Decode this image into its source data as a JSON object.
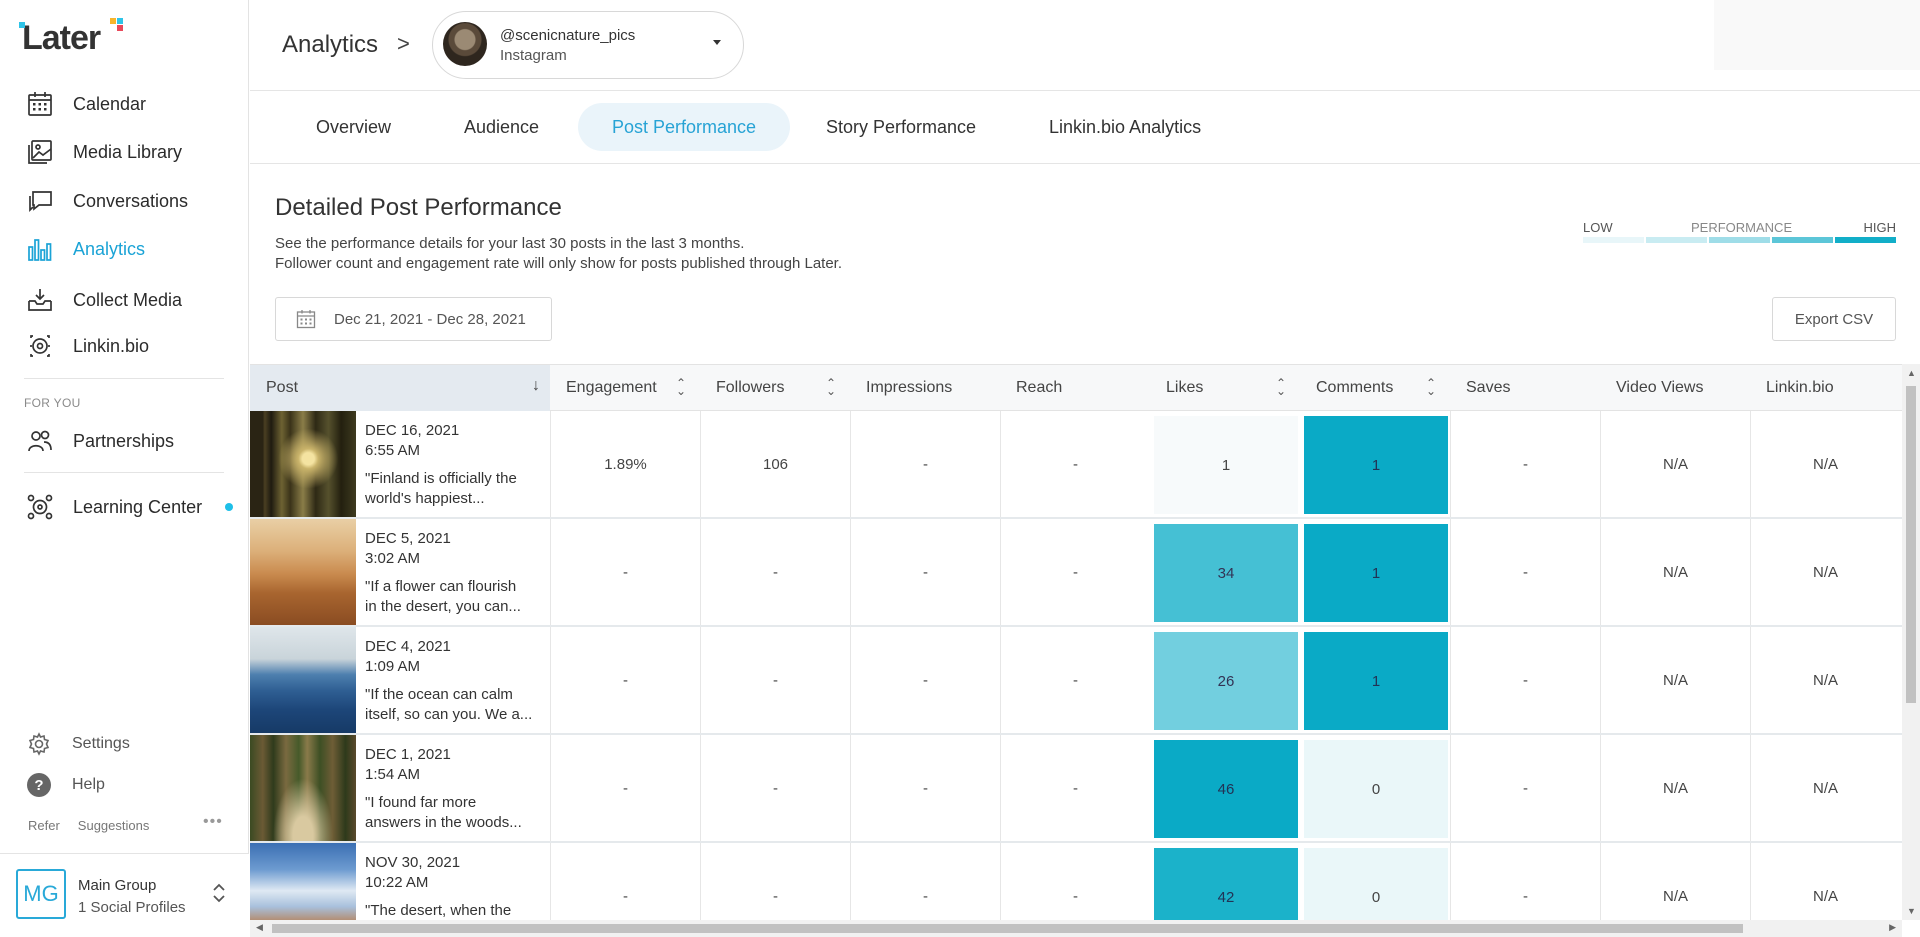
{
  "app": {
    "logo_text": "Later"
  },
  "sidebar": {
    "items": [
      {
        "label": "Calendar",
        "icon": "calendar-icon"
      },
      {
        "label": "Media Library",
        "icon": "image-icon"
      },
      {
        "label": "Conversations",
        "icon": "chat-icon"
      },
      {
        "label": "Analytics",
        "icon": "bar-chart-icon",
        "active": true
      },
      {
        "label": "Collect Media",
        "icon": "download-tray-icon"
      },
      {
        "label": "Linkin.bio",
        "icon": "linkinbio-icon"
      }
    ],
    "section_label": "FOR YOU",
    "partnerships": {
      "label": "Partnerships",
      "icon": "people-icon"
    },
    "learning": {
      "label": "Learning Center",
      "icon": "learning-icon",
      "notification_color": "#1ebfe8"
    },
    "settings": {
      "label": "Settings",
      "icon": "gear-icon"
    },
    "help": {
      "label": "Help",
      "icon": "help-icon",
      "glyph": "?"
    },
    "footer_links": {
      "refer": "Refer",
      "suggestions": "Suggestions",
      "more": "•••"
    },
    "group": {
      "initials": "MG",
      "name": "Main Group",
      "profiles": "1 Social Profiles"
    }
  },
  "header": {
    "breadcrumb": "Analytics",
    "breadcrumb_arrow": ">",
    "profile": {
      "handle": "@scenicnature_pics",
      "network": "Instagram"
    }
  },
  "tabs": [
    {
      "label": "Overview"
    },
    {
      "label": "Audience"
    },
    {
      "label": "Post Performance",
      "active": true
    },
    {
      "label": "Story Performance"
    },
    {
      "label": "Linkin.bio Analytics"
    }
  ],
  "main": {
    "title": "Detailed Post Performance",
    "description_1": "See the performance details for your last 30 posts in the last 3 months.",
    "description_2": "Follower count and engagement rate will only show for posts published through Later.",
    "legend": {
      "low": "LOW",
      "mid": "PERFORMANCE",
      "high": "HIGH",
      "colors": [
        "#e8f6f9",
        "#c9ecf2",
        "#9fdde8",
        "#5cc6d8",
        "#12aec8"
      ]
    },
    "date_range": "Dec 21, 2021 - Dec 28, 2021",
    "export_label": "Export CSV"
  },
  "table": {
    "headers": {
      "post": "Post",
      "engagement": "Engagement",
      "followers": "Followers",
      "impressions": "Impressions",
      "reach": "Reach",
      "likes": "Likes",
      "comments": "Comments",
      "saves": "Saves",
      "video_views": "Video Views",
      "linkinbio": "Linkin.bio"
    },
    "rows": [
      {
        "date": "DEC 16, 2021",
        "time": "6:55 AM",
        "caption1": "\"Finland is officially the",
        "caption2": "world's happiest...",
        "engagement": "1.89%",
        "followers": "106",
        "impressions": "-",
        "reach": "-",
        "likes": "1",
        "comments": "1",
        "saves": "-",
        "video_views": "N/A",
        "linkinbio": "N/A",
        "likes_color": "#f7fafb",
        "comments_color": "#0aaac6",
        "thumb": "forest-sunlight-image"
      },
      {
        "date": "DEC 5, 2021",
        "time": "3:02 AM",
        "caption1": "\"If a flower can flourish",
        "caption2": "in the desert, you can...",
        "engagement": "-",
        "followers": "-",
        "impressions": "-",
        "reach": "-",
        "likes": "34",
        "comments": "1",
        "saves": "-",
        "video_views": "N/A",
        "linkinbio": "N/A",
        "likes_color": "#45c0d4",
        "comments_color": "#0aaac6",
        "thumb": "desert-dunes-image"
      },
      {
        "date": "DEC 4, 2021",
        "time": "1:09 AM",
        "caption1": "\"If the ocean can calm",
        "caption2": "itself, so can you. We a...",
        "engagement": "-",
        "followers": "-",
        "impressions": "-",
        "reach": "-",
        "likes": "26",
        "comments": "1",
        "saves": "-",
        "video_views": "N/A",
        "linkinbio": "N/A",
        "likes_color": "#72cfdf",
        "comments_color": "#0aaac6",
        "thumb": "ocean-waves-image"
      },
      {
        "date": "DEC 1, 2021",
        "time": "1:54 AM",
        "caption1": "\"I found far more",
        "caption2": "answers in the woods...",
        "engagement": "-",
        "followers": "-",
        "impressions": "-",
        "reach": "-",
        "likes": "46",
        "comments": "0",
        "saves": "-",
        "video_views": "N/A",
        "linkinbio": "N/A",
        "likes_color": "#0aaac6",
        "comments_color": "#eaf7f9",
        "thumb": "forest-path-image"
      },
      {
        "date": "NOV 30, 2021",
        "time": "10:22 AM",
        "caption1": "\"The desert, when the",
        "caption2": "",
        "engagement": "-",
        "followers": "-",
        "impressions": "-",
        "reach": "-",
        "likes": "42",
        "comments": "0",
        "saves": "-",
        "video_views": "N/A",
        "linkinbio": "N/A",
        "likes_color": "#1bb2ca",
        "comments_color": "#eaf7f9",
        "thumb": "desert-sky-image"
      }
    ]
  }
}
